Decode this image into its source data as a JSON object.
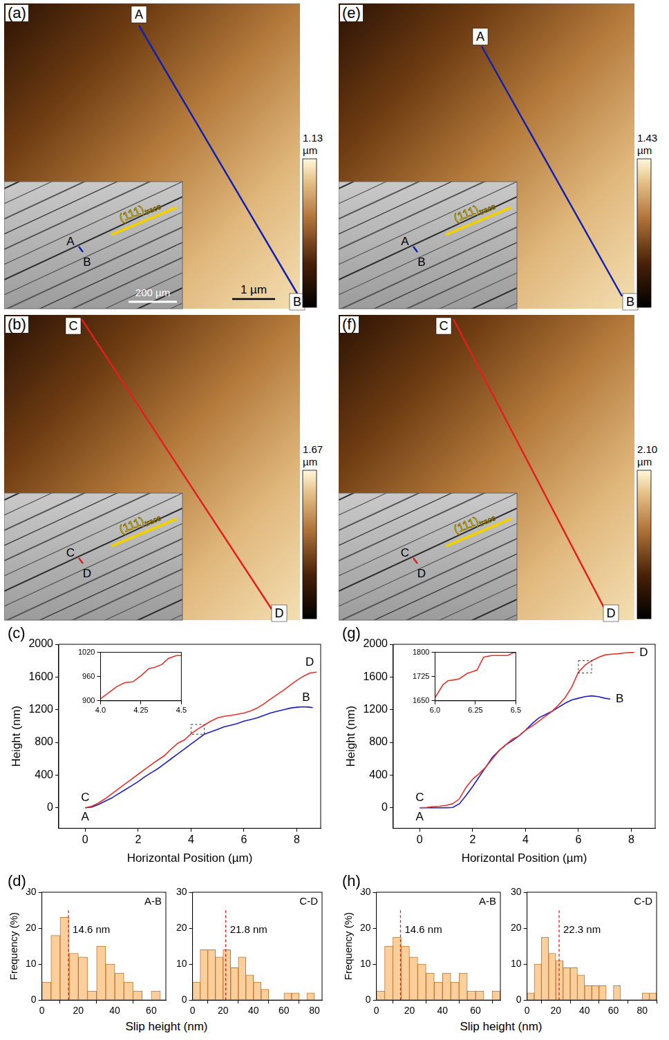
{
  "images": [
    {
      "panel": "(a)",
      "start": "A",
      "end": "B",
      "line_color": "#1020b0",
      "colorbar": {
        "max": {
          "value": 1.13,
          "label": "1.13"
        },
        "unit": "µm"
      },
      "scalebar": "1 µm",
      "inset": {
        "start": "A",
        "end": "B",
        "trace": "(111)",
        "trace_subscript": "trace",
        "scalebar": "200 µm"
      }
    },
    {
      "panel": "(b)",
      "start": "C",
      "end": "D",
      "line_color": "#e02020",
      "colorbar": {
        "max": {
          "value": 1.67,
          "label": "1.67"
        },
        "unit": "µm"
      },
      "inset": {
        "start": "C",
        "end": "D",
        "trace": "(111)",
        "trace_subscript": "trace"
      }
    },
    {
      "panel": "(e)",
      "start": "A",
      "end": "B",
      "line_color": "#1020b0",
      "colorbar": {
        "max": {
          "value": 1.43,
          "label": "1.43"
        },
        "unit": "µm"
      },
      "inset": {
        "start": "A",
        "end": "B",
        "trace": "(111)",
        "trace_subscript": "trace"
      }
    },
    {
      "panel": "(f)",
      "start": "C",
      "end": "D",
      "line_color": "#e02020",
      "colorbar": {
        "max": {
          "value": 2.1,
          "label": "2.10"
        },
        "unit": "µm"
      },
      "inset": {
        "start": "C",
        "end": "D",
        "trace": "(111)",
        "trace_subscript": "trace"
      }
    }
  ],
  "chart_data": [
    {
      "panel": "(c)",
      "type": "line",
      "xlabel": "Horizontal Position (µm)",
      "ylabel": "Height (nm)",
      "xlim": [
        -1,
        8.9
      ],
      "xticks": [
        0,
        2,
        4,
        6,
        8
      ],
      "ylim": [
        -250,
        2000
      ],
      "yticks": [
        0,
        400,
        800,
        1200,
        1600,
        2000
      ],
      "series": [
        {
          "start_label": "C",
          "end_label": "D",
          "color": "#e8312a",
          "x": [
            0,
            0.25,
            0.5,
            0.75,
            1,
            1.25,
            1.5,
            1.75,
            2,
            2.25,
            2.5,
            2.75,
            3,
            3.25,
            3.5,
            3.75,
            4,
            4.25,
            4.5,
            4.75,
            5,
            5.25,
            5.5,
            5.75,
            6,
            6.25,
            6.5,
            6.75,
            7,
            7.25,
            7.5,
            7.75,
            8,
            8.25,
            8.5,
            8.75
          ],
          "values": [
            0,
            20,
            60,
            110,
            170,
            230,
            290,
            350,
            410,
            470,
            530,
            585,
            640,
            720,
            790,
            830,
            905,
            962,
            1012,
            1060,
            1100,
            1120,
            1130,
            1145,
            1160,
            1185,
            1220,
            1270,
            1330,
            1385,
            1440,
            1500,
            1560,
            1610,
            1650,
            1660
          ]
        },
        {
          "start_label": "A",
          "end_label": "B",
          "color": "#1c1cc8",
          "x": [
            0,
            0.25,
            0.5,
            0.75,
            1,
            1.25,
            1.5,
            1.75,
            2,
            2.25,
            2.5,
            2.75,
            3,
            3.25,
            3.5,
            3.75,
            4,
            4.25,
            4.5,
            4.75,
            5,
            5.25,
            5.5,
            5.75,
            6,
            6.25,
            6.5,
            6.75,
            7,
            7.25,
            7.5,
            7.75,
            8,
            8.25,
            8.5,
            8.6
          ],
          "values": [
            0,
            10,
            40,
            80,
            120,
            170,
            220,
            270,
            320,
            380,
            430,
            480,
            540,
            600,
            660,
            720,
            780,
            840,
            900,
            930,
            960,
            990,
            1010,
            1030,
            1060,
            1080,
            1100,
            1130,
            1160,
            1180,
            1200,
            1220,
            1230,
            1235,
            1230,
            1225
          ]
        }
      ],
      "inset": {
        "type": "line",
        "xlim": [
          4,
          4.5
        ],
        "xticks": [
          {
            "value": 4,
            "label": "4.0"
          },
          4.25,
          4.5
        ],
        "ylim": [
          900,
          1020
        ],
        "yticks": [
          900,
          960,
          1020
        ],
        "series": [
          {
            "color": "#e8312a",
            "x": [
              4,
              4.05,
              4.1,
              4.15,
              4.2,
              4.25,
              4.3,
              4.33,
              4.38,
              4.42,
              4.47,
              4.5
            ],
            "values": [
              905,
              920,
              935,
              945,
              947,
              962,
              980,
              982,
              990,
              1005,
              1012,
              1012
            ]
          }
        ]
      }
    },
    {
      "panel": "(g)",
      "type": "line",
      "xlabel": "Horizontal Position (µm)",
      "ylabel": "Height (nm)",
      "xlim": [
        -1,
        8.9
      ],
      "xticks": [
        0,
        2,
        4,
        6,
        8
      ],
      "ylim": [
        -250,
        2000
      ],
      "yticks": [
        0,
        400,
        800,
        1200,
        1600,
        2000
      ],
      "series": [
        {
          "start_label": "C",
          "end_label": "D",
          "color": "#e8312a",
          "x": [
            0,
            0.25,
            0.5,
            0.75,
            1,
            1.25,
            1.5,
            1.75,
            2,
            2.25,
            2.5,
            2.75,
            3,
            3.25,
            3.5,
            3.75,
            4,
            4.25,
            4.5,
            4.75,
            5,
            5.25,
            5.5,
            5.75,
            6,
            6.25,
            6.5,
            6.75,
            7,
            7.25,
            7.5,
            7.75,
            8,
            8.1
          ],
          "values": [
            0,
            5,
            15,
            20,
            30,
            50,
            110,
            250,
            350,
            420,
            500,
            600,
            700,
            770,
            840,
            880,
            950,
            1000,
            1060,
            1120,
            1180,
            1260,
            1350,
            1480,
            1660,
            1745,
            1800,
            1840,
            1870,
            1880,
            1885,
            1895,
            1900,
            1900
          ]
        },
        {
          "start_label": "A",
          "end_label": "B",
          "color": "#1c1cc8",
          "x": [
            0,
            0.5,
            1,
            1.25,
            1.5,
            1.75,
            2,
            2.25,
            2.5,
            2.75,
            3,
            3.25,
            3.5,
            3.75,
            4,
            4.25,
            4.5,
            4.75,
            5,
            5.25,
            5.5,
            5.75,
            6,
            6.25,
            6.5,
            6.75,
            7,
            7.2
          ],
          "values": [
            0,
            0,
            0,
            5,
            50,
            150,
            260,
            380,
            500,
            620,
            700,
            770,
            820,
            880,
            950,
            1030,
            1100,
            1140,
            1180,
            1230,
            1280,
            1320,
            1340,
            1360,
            1370,
            1360,
            1340,
            1330
          ]
        }
      ],
      "inset": {
        "type": "line",
        "xlim": [
          6,
          6.5
        ],
        "xticks": [
          {
            "value": 6,
            "label": "6.0"
          },
          6.25,
          6.5
        ],
        "ylim": [
          1650,
          1800
        ],
        "yticks": [
          1650,
          1725,
          1800
        ],
        "series": [
          {
            "color": "#e8312a",
            "x": [
              6,
              6.05,
              6.08,
              6.12,
              6.15,
              6.2,
              6.23,
              6.26,
              6.3,
              6.35,
              6.4,
              6.45,
              6.48,
              6.5
            ],
            "values": [
              1660,
              1700,
              1712,
              1715,
              1718,
              1735,
              1740,
              1745,
              1785,
              1790,
              1790,
              1790,
              1798,
              1800
            ]
          }
        ]
      }
    },
    {
      "panel": "(d)",
      "type": "histogram",
      "xlabel": "Slip height (nm)",
      "ylabel": "Frequency (%)",
      "color": "#fbcf9c",
      "charts": [
        {
          "label": "A-B",
          "bins": [
            0,
            5,
            10,
            15,
            20,
            25,
            30,
            35,
            40,
            45,
            50,
            55,
            60,
            65
          ],
          "counts": [
            5,
            18,
            23,
            13,
            12,
            2.5,
            15,
            10,
            7.5,
            5,
            2.5,
            0,
            2.5
          ],
          "mean": {
            "value": 14.6,
            "label": "14.6 nm"
          },
          "xlim": [
            0,
            68
          ],
          "xticks": [
            0,
            20,
            40,
            60
          ],
          "ylim": [
            0,
            30
          ],
          "yticks": [
            0,
            10,
            20,
            30
          ]
        },
        {
          "label": "C-D",
          "bins": [
            0,
            5,
            10,
            15,
            20,
            25,
            30,
            35,
            40,
            45,
            50,
            55,
            60,
            65,
            70,
            75,
            80
          ],
          "counts": [
            5,
            14,
            14,
            12,
            14,
            9,
            12,
            7,
            5,
            3,
            0,
            0,
            2,
            2,
            0,
            2
          ],
          "mean": {
            "value": 21.8,
            "label": "21.8 nm"
          },
          "xlim": [
            0,
            85
          ],
          "xticks": [
            0,
            20,
            40,
            60,
            80
          ],
          "ylim": [
            0,
            30
          ],
          "yticks": [
            0,
            10,
            20,
            30
          ]
        }
      ]
    },
    {
      "panel": "(h)",
      "type": "histogram",
      "xlabel": "Slip height (nm)",
      "ylabel": "Frequency (%)",
      "color": "#fbcf9c",
      "charts": [
        {
          "label": "A-B",
          "bins": [
            0,
            5,
            10,
            15,
            20,
            25,
            30,
            35,
            40,
            45,
            50,
            55,
            60,
            65,
            70,
            75
          ],
          "counts": [
            2.5,
            15,
            17.5,
            15,
            12,
            10,
            7.5,
            5,
            7.5,
            5,
            7.5,
            2.5,
            2.5,
            0,
            2.5
          ],
          "mean": {
            "value": 14.6,
            "label": "14.6 nm"
          },
          "xlim": [
            0,
            75
          ],
          "xticks": [
            0,
            20,
            40,
            60
          ],
          "ylim": [
            0,
            30
          ],
          "yticks": [
            0,
            10,
            20,
            30
          ]
        },
        {
          "label": "C-D",
          "bins": [
            0,
            5,
            10,
            15,
            20,
            25,
            30,
            35,
            40,
            45,
            50,
            55,
            60,
            65,
            70,
            75,
            80,
            85,
            90
          ],
          "counts": [
            2,
            10,
            17.5,
            13,
            11,
            9,
            9,
            7,
            4,
            4,
            4,
            0,
            4,
            0,
            0,
            0,
            2,
            2
          ],
          "mean": {
            "value": 22.3,
            "label": "22.3 nm"
          },
          "xlim": [
            0,
            90
          ],
          "xticks": [
            0,
            20,
            40,
            60,
            80
          ],
          "ylim": [
            0,
            30
          ],
          "yticks": [
            0,
            10,
            20,
            30
          ]
        }
      ]
    }
  ]
}
